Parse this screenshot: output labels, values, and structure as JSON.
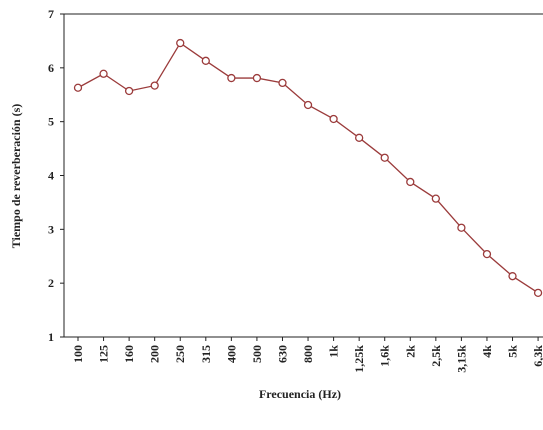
{
  "chart_data": {
    "type": "line",
    "x_label": "Frecuencia (Hz)",
    "y_label": "Tiempo de reverberación (s)",
    "categories": [
      "100",
      "125",
      "160",
      "200",
      "250",
      "315",
      "400",
      "500",
      "630",
      "800",
      "1k",
      "1,25k",
      "1,6k",
      "2k",
      "2,5k",
      "3,15k",
      "4k",
      "5k",
      "6,3k"
    ],
    "values": [
      5.63,
      5.89,
      5.57,
      5.67,
      6.46,
      6.13,
      5.81,
      5.81,
      5.72,
      5.31,
      5.05,
      4.7,
      4.33,
      3.88,
      3.57,
      3.03,
      2.54,
      2.13,
      1.82
    ],
    "color": "#9b3b3b",
    "ylim": [
      1,
      7
    ],
    "yticks": [
      1,
      2,
      3,
      4,
      5,
      6,
      7
    ],
    "grid": false
  }
}
